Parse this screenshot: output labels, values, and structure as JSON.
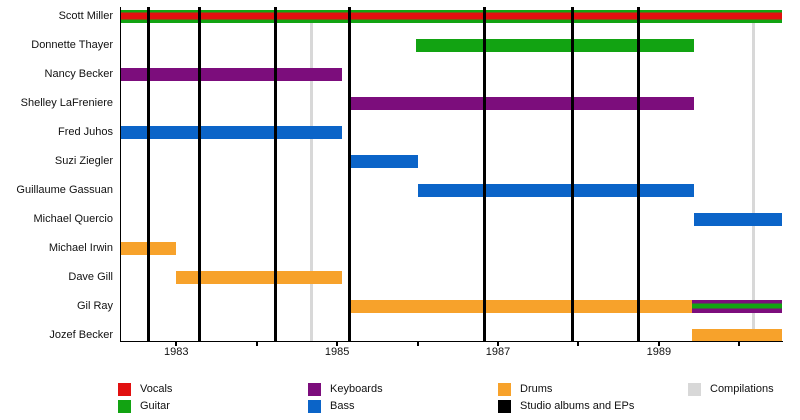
{
  "chart_data": {
    "type": "timeline",
    "description": "Band members timeline with instrument roles and release lines",
    "xlim": [
      1982.3,
      1990.53
    ],
    "x_ticks": [
      {
        "year": 1983,
        "label": "1983"
      },
      {
        "year": 1984,
        "label": ""
      },
      {
        "year": 1985,
        "label": "1985"
      },
      {
        "year": 1986,
        "label": ""
      },
      {
        "year": 1987,
        "label": "1987"
      },
      {
        "year": 1988,
        "label": ""
      },
      {
        "year": 1989,
        "label": "1989"
      },
      {
        "year": 1990,
        "label": ""
      }
    ],
    "palette": {
      "vocals": "#e11010",
      "guitar": "#12a312",
      "keyboards": "#7c0d7c",
      "bass": "#0b64c8",
      "drums": "#f7a22b",
      "studio": "#000000",
      "compilations": "#d8d8d8"
    },
    "members": [
      {
        "name": "Scott Miller",
        "bars": [
          {
            "start": 1982.3,
            "end": 1990.53,
            "role": "guitar",
            "stripe": "vocals"
          }
        ]
      },
      {
        "name": "Donnette Thayer",
        "bars": [
          {
            "start": 1985.98,
            "end": 1989.43,
            "role": "guitar"
          }
        ]
      },
      {
        "name": "Nancy Becker",
        "bars": [
          {
            "start": 1982.3,
            "end": 1985.06,
            "role": "keyboards"
          }
        ]
      },
      {
        "name": "Shelley LaFreniere",
        "bars": [
          {
            "start": 1985.15,
            "end": 1989.43,
            "role": "keyboards"
          }
        ]
      },
      {
        "name": "Fred Juhos",
        "bars": [
          {
            "start": 1982.3,
            "end": 1985.06,
            "role": "bass"
          }
        ]
      },
      {
        "name": "Suzi Ziegler",
        "bars": [
          {
            "start": 1985.15,
            "end": 1986.0,
            "role": "bass"
          }
        ]
      },
      {
        "name": "Guillaume Gassuan",
        "bars": [
          {
            "start": 1986.0,
            "end": 1989.43,
            "role": "bass"
          }
        ]
      },
      {
        "name": "Michael Quercio",
        "bars": [
          {
            "start": 1989.43,
            "end": 1990.53,
            "role": "bass"
          }
        ]
      },
      {
        "name": "Michael Irwin",
        "bars": [
          {
            "start": 1982.3,
            "end": 1983.0,
            "role": "drums"
          }
        ]
      },
      {
        "name": "Dave Gill",
        "bars": [
          {
            "start": 1983.0,
            "end": 1985.06,
            "role": "drums"
          }
        ]
      },
      {
        "name": "Gil Ray",
        "bars": [
          {
            "start": 1985.15,
            "end": 1989.41,
            "role": "drums"
          },
          {
            "start": 1989.41,
            "end": 1990.53,
            "role": "keyboards",
            "stripe": "guitar"
          }
        ]
      },
      {
        "name": "Jozef Becker",
        "bars": [
          {
            "start": 1989.41,
            "end": 1990.53,
            "role": "drums"
          }
        ]
      }
    ],
    "event_lines": {
      "studio_albums_and_eps": [
        1982.65,
        1983.29,
        1984.23,
        1985.15,
        1986.83,
        1987.92,
        1988.75
      ],
      "compilations": [
        1984.68,
        1990.17
      ]
    },
    "legend": {
      "columns": [
        [
          {
            "label": "Vocals",
            "role": "vocals"
          },
          {
            "label": "Guitar",
            "role": "guitar"
          }
        ],
        [
          {
            "label": "Keyboards",
            "role": "keyboards"
          },
          {
            "label": "Bass",
            "role": "bass"
          }
        ],
        [
          {
            "label": "Drums",
            "role": "drums"
          },
          {
            "label": "Studio albums and EPs",
            "role": "studio"
          }
        ],
        [
          {
            "label": "Compilations",
            "role": "compilations"
          }
        ]
      ]
    }
  }
}
